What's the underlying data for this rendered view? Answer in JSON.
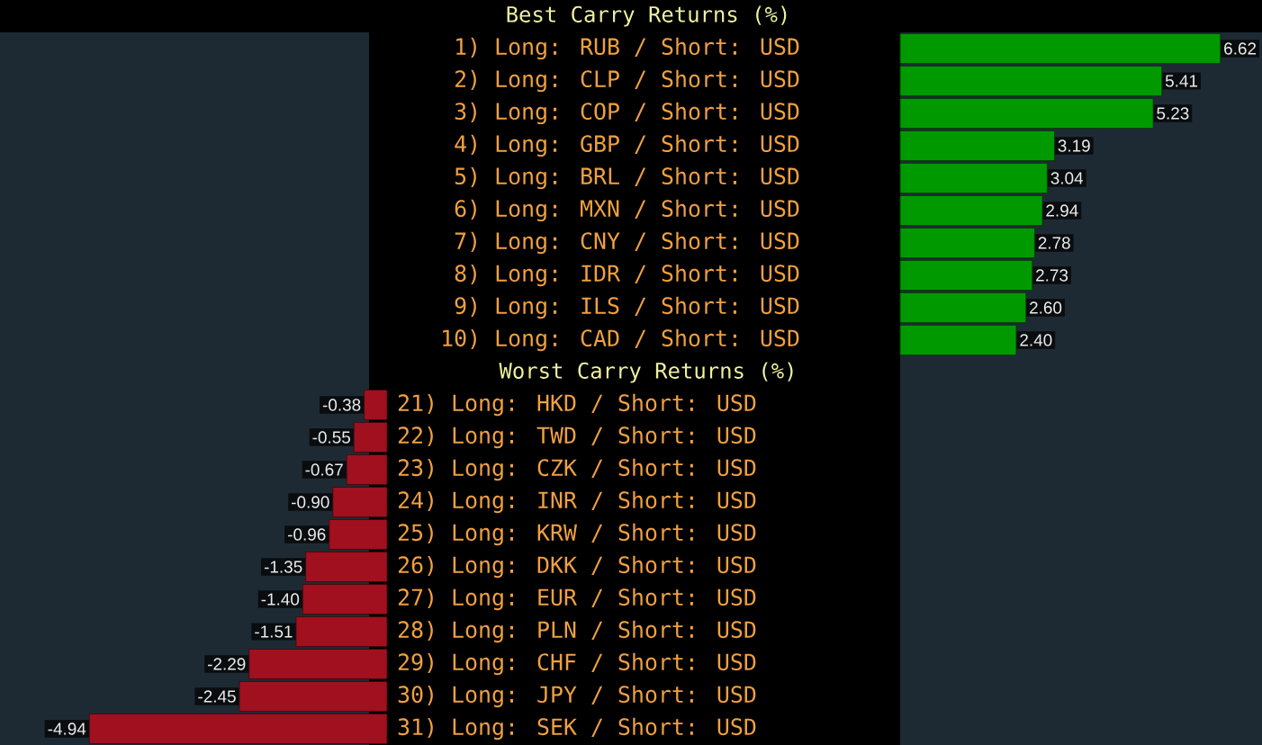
{
  "chart_data": [
    {
      "type": "bar",
      "orientation": "horizontal",
      "title": "Best Carry Returns (%)",
      "categories": [
        "1) Long: RUB / Short: USD",
        "2) Long: CLP / Short: USD",
        "3) Long: COP / Short: USD",
        "4) Long: GBP / Short: USD",
        "5) Long: BRL / Short: USD",
        "6) Long: MXN / Short: USD",
        "7) Long: CNY / Short: USD",
        "8) Long: IDR / Short: USD",
        "9) Long: ILS / Short: USD",
        "10) Long: CAD / Short: USD"
      ],
      "values": [
        6.62,
        5.41,
        5.23,
        3.19,
        3.04,
        2.94,
        2.78,
        2.73,
        2.6,
        2.4
      ],
      "value_labels": [
        "6.62",
        "5.41",
        "5.23",
        "3.19",
        "3.04",
        "2.94",
        "2.78",
        "2.73",
        "2.60",
        "2.40"
      ],
      "color": "#009a00"
    },
    {
      "type": "bar",
      "orientation": "horizontal",
      "title": "Worst Carry Returns (%)",
      "categories": [
        "21) Long: HKD / Short: USD",
        "22) Long: TWD / Short: USD",
        "23) Long: CZK / Short: USD",
        "24) Long: INR / Short: USD",
        "25) Long: KRW / Short: USD",
        "26) Long: DKK / Short: USD",
        "27) Long: EUR / Short: USD",
        "28) Long: PLN / Short: USD",
        "29) Long: CHF / Short: USD",
        "30) Long: JPY / Short: USD",
        "31) Long: SEK / Short: USD"
      ],
      "values": [
        -0.38,
        -0.55,
        -0.67,
        -0.9,
        -0.96,
        -1.35,
        -1.4,
        -1.51,
        -2.29,
        -2.45,
        -4.94
      ],
      "value_labels": [
        "-0.38",
        "-0.55",
        "-0.67",
        "-0.90",
        "-0.96",
        "-1.35",
        "-1.40",
        "-1.51",
        "-2.29",
        "-2.45",
        "-4.94"
      ],
      "color": "#a0101e"
    }
  ]
}
